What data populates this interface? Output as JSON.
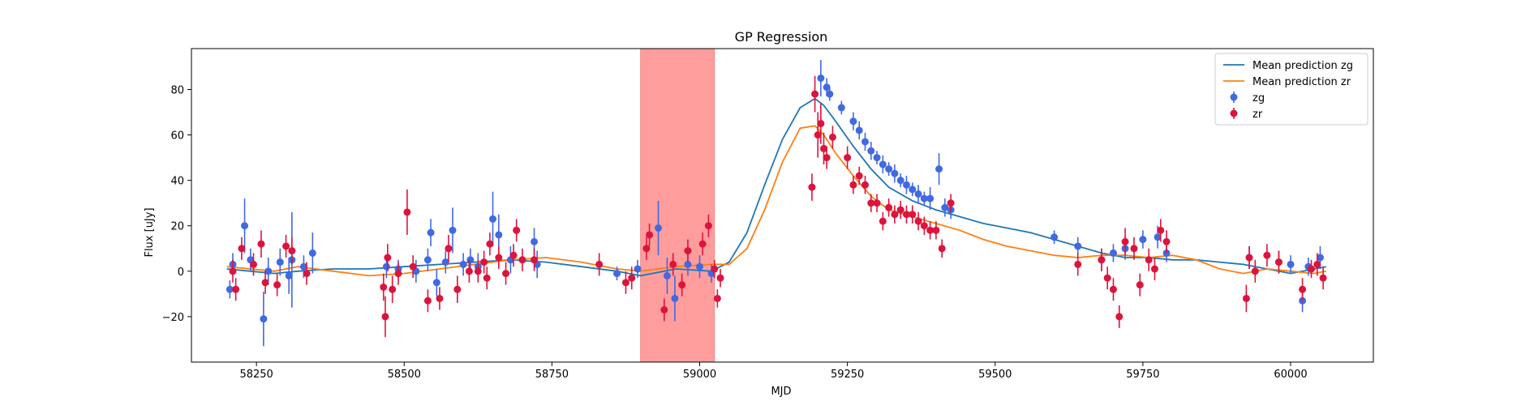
{
  "chart_data": {
    "type": "scatter",
    "title": "GP Regression",
    "xlabel": "MJD",
    "ylabel": "Flux [uJy]",
    "xlim": [
      58140,
      60140
    ],
    "ylim": [
      -40,
      98
    ],
    "xticks": [
      58250,
      58500,
      58750,
      59000,
      59250,
      59500,
      59750,
      60000
    ],
    "yticks": [
      -20,
      0,
      20,
      40,
      60,
      80
    ],
    "legend_position": "upper right",
    "shaded_region": {
      "x0": 58900,
      "x1": 59025,
      "color": "#ff9d9d"
    },
    "lines": [
      {
        "name": "Mean prediction zg",
        "color": "#1f77b4",
        "x": [
          58200,
          58240,
          58280,
          58320,
          58380,
          58440,
          58500,
          58560,
          58620,
          58680,
          58740,
          58800,
          58860,
          58900,
          58960,
          59020,
          59050,
          59080,
          59110,
          59140,
          59170,
          59195,
          59210,
          59230,
          59260,
          59290,
          59320,
          59360,
          59400,
          59440,
          59480,
          59520,
          59560,
          59600,
          59640,
          59680,
          59720,
          59760,
          59800,
          59840,
          59880,
          59920,
          59960,
          60000,
          60040,
          60060
        ],
        "y": [
          1,
          0,
          -1,
          0,
          1,
          1,
          2,
          3,
          4,
          5,
          4,
          2,
          0,
          -2,
          1,
          0,
          4,
          17,
          38,
          58,
          72,
          76,
          73,
          66,
          55,
          45,
          37,
          31,
          27,
          24,
          21,
          19,
          17,
          14,
          11,
          8,
          6,
          6,
          5,
          5,
          4,
          3,
          1,
          -1,
          1,
          2
        ]
      },
      {
        "name": "Mean prediction zr",
        "color": "#ff7f0e",
        "x": [
          58200,
          58240,
          58280,
          58320,
          58380,
          58440,
          58500,
          58560,
          58620,
          58680,
          58740,
          58800,
          58860,
          58900,
          58960,
          59020,
          59050,
          59080,
          59110,
          59140,
          59170,
          59195,
          59210,
          59230,
          59260,
          59290,
          59320,
          59360,
          59400,
          59440,
          59480,
          59520,
          59560,
          59600,
          59640,
          59680,
          59720,
          59760,
          59800,
          59840,
          59880,
          59920,
          59960,
          60000,
          60040,
          60060
        ],
        "y": [
          2,
          1,
          0,
          2,
          0,
          -2,
          -1,
          1,
          3,
          5,
          6,
          4,
          1,
          0,
          2,
          3,
          3,
          10,
          27,
          48,
          63,
          64,
          60,
          52,
          42,
          33,
          27,
          24,
          21,
          18,
          14,
          11,
          9,
          7,
          6,
          7,
          7,
          6,
          7,
          5,
          1,
          -1,
          1,
          0,
          -1,
          0
        ]
      }
    ],
    "series": [
      {
        "name": "zg",
        "color": "#4169e1",
        "points": [
          [
            58205,
            -8,
            4
          ],
          [
            58210,
            3,
            5
          ],
          [
            58230,
            20,
            12
          ],
          [
            58240,
            5,
            5
          ],
          [
            58262,
            -21,
            12
          ],
          [
            58270,
            0,
            6
          ],
          [
            58290,
            4,
            6
          ],
          [
            58305,
            -2,
            8
          ],
          [
            58310,
            5,
            21
          ],
          [
            58330,
            2,
            5
          ],
          [
            58345,
            8,
            9
          ],
          [
            58470,
            2,
            5
          ],
          [
            58490,
            1,
            4
          ],
          [
            58520,
            0,
            5
          ],
          [
            58540,
            5,
            5
          ],
          [
            58545,
            17,
            6
          ],
          [
            58555,
            -5,
            6
          ],
          [
            58570,
            4,
            5
          ],
          [
            58582,
            18,
            10
          ],
          [
            58600,
            3,
            5
          ],
          [
            58612,
            5,
            5
          ],
          [
            58625,
            2,
            6
          ],
          [
            58650,
            23,
            12
          ],
          [
            58660,
            16,
            9
          ],
          [
            58680,
            5,
            6
          ],
          [
            58720,
            13,
            6
          ],
          [
            58725,
            3,
            6
          ],
          [
            58860,
            -1,
            3
          ],
          [
            58895,
            1,
            4
          ],
          [
            58930,
            19,
            12
          ],
          [
            58945,
            -2,
            8
          ],
          [
            58958,
            -12,
            10
          ],
          [
            58980,
            3,
            5
          ],
          [
            59000,
            2,
            5
          ],
          [
            59020,
            -1,
            4
          ],
          [
            59205,
            85,
            8
          ],
          [
            59215,
            81,
            4
          ],
          [
            59220,
            78,
            3
          ],
          [
            59240,
            72,
            3
          ],
          [
            59260,
            66,
            4
          ],
          [
            59270,
            62,
            4
          ],
          [
            59280,
            57,
            4
          ],
          [
            59290,
            53,
            4
          ],
          [
            59300,
            50,
            3
          ],
          [
            59310,
            47,
            4
          ],
          [
            59320,
            45,
            3
          ],
          [
            59330,
            43,
            4
          ],
          [
            59340,
            40,
            3
          ],
          [
            59350,
            38,
            4
          ],
          [
            59360,
            36,
            3
          ],
          [
            59370,
            34,
            4
          ],
          [
            59380,
            32,
            3
          ],
          [
            59390,
            32,
            5
          ],
          [
            59405,
            45,
            7
          ],
          [
            59415,
            28,
            4
          ],
          [
            59425,
            27,
            4
          ],
          [
            59600,
            15,
            3
          ],
          [
            59640,
            11,
            4
          ],
          [
            59680,
            5,
            5
          ],
          [
            59700,
            8,
            4
          ],
          [
            59720,
            10,
            5
          ],
          [
            59750,
            14,
            4
          ],
          [
            59775,
            15,
            5
          ],
          [
            59790,
            8,
            4
          ],
          [
            59930,
            6,
            5
          ],
          [
            59980,
            4,
            5
          ],
          [
            60000,
            3,
            4
          ],
          [
            60020,
            -13,
            5
          ],
          [
            60030,
            2,
            4
          ],
          [
            60050,
            6,
            5
          ]
        ]
      },
      {
        "name": "zr",
        "color": "#dc143c",
        "points": [
          [
            58210,
            0,
            5
          ],
          [
            58215,
            -8,
            5
          ],
          [
            58225,
            10,
            5
          ],
          [
            58245,
            3,
            5
          ],
          [
            58258,
            12,
            6
          ],
          [
            58265,
            -5,
            5
          ],
          [
            58285,
            -6,
            5
          ],
          [
            58300,
            11,
            5
          ],
          [
            58310,
            9,
            6
          ],
          [
            58335,
            -1,
            5
          ],
          [
            58465,
            -7,
            6
          ],
          [
            58468,
            -20,
            9
          ],
          [
            58472,
            6,
            6
          ],
          [
            58480,
            -8,
            6
          ],
          [
            58490,
            -1,
            5
          ],
          [
            58505,
            26,
            10
          ],
          [
            58515,
            2,
            5
          ],
          [
            58540,
            -13,
            5
          ],
          [
            58560,
            -12,
            5
          ],
          [
            58575,
            10,
            6
          ],
          [
            58590,
            -8,
            6
          ],
          [
            58610,
            0,
            5
          ],
          [
            58625,
            0,
            5
          ],
          [
            58635,
            4,
            5
          ],
          [
            58640,
            -3,
            5
          ],
          [
            58645,
            12,
            5
          ],
          [
            58660,
            6,
            5
          ],
          [
            58672,
            -1,
            5
          ],
          [
            58685,
            7,
            5
          ],
          [
            58690,
            18,
            5
          ],
          [
            58700,
            5,
            5
          ],
          [
            58720,
            5,
            5
          ],
          [
            58830,
            3,
            5
          ],
          [
            58875,
            -5,
            5
          ],
          [
            58885,
            -3,
            5
          ],
          [
            58910,
            10,
            5
          ],
          [
            58915,
            16,
            5
          ],
          [
            58940,
            -17,
            5
          ],
          [
            58955,
            3,
            5
          ],
          [
            58970,
            -6,
            5
          ],
          [
            58980,
            9,
            5
          ],
          [
            59005,
            12,
            5
          ],
          [
            59015,
            20,
            5
          ],
          [
            59025,
            1,
            4
          ],
          [
            59035,
            -3,
            4
          ],
          [
            59030,
            -12,
            4
          ],
          [
            59190,
            37,
            6
          ],
          [
            59195,
            78,
            8
          ],
          [
            59200,
            60,
            10
          ],
          [
            59205,
            65,
            9
          ],
          [
            59210,
            54,
            7
          ],
          [
            59215,
            50,
            5
          ],
          [
            59225,
            59,
            5
          ],
          [
            59250,
            50,
            5
          ],
          [
            59260,
            38,
            4
          ],
          [
            59270,
            42,
            4
          ],
          [
            59280,
            38,
            4
          ],
          [
            59290,
            30,
            4
          ],
          [
            59300,
            30,
            4
          ],
          [
            59310,
            22,
            4
          ],
          [
            59320,
            28,
            4
          ],
          [
            59330,
            25,
            4
          ],
          [
            59340,
            27,
            4
          ],
          [
            59350,
            25,
            4
          ],
          [
            59360,
            25,
            4
          ],
          [
            59370,
            22,
            4
          ],
          [
            59380,
            20,
            4
          ],
          [
            59390,
            18,
            4
          ],
          [
            59400,
            18,
            4
          ],
          [
            59410,
            10,
            4
          ],
          [
            59425,
            30,
            4
          ],
          [
            59640,
            3,
            5
          ],
          [
            59680,
            5,
            5
          ],
          [
            59690,
            -3,
            5
          ],
          [
            59700,
            -8,
            5
          ],
          [
            59710,
            -20,
            5
          ],
          [
            59720,
            13,
            6
          ],
          [
            59735,
            10,
            5
          ],
          [
            59745,
            -6,
            5
          ],
          [
            59760,
            5,
            5
          ],
          [
            59770,
            1,
            5
          ],
          [
            59780,
            18,
            5
          ],
          [
            59790,
            13,
            5
          ],
          [
            59925,
            -12,
            6
          ],
          [
            59930,
            6,
            5
          ],
          [
            59940,
            0,
            5
          ],
          [
            59960,
            7,
            5
          ],
          [
            59980,
            4,
            5
          ],
          [
            60020,
            -8,
            5
          ],
          [
            60035,
            1,
            4
          ],
          [
            60045,
            3,
            5
          ],
          [
            60055,
            -3,
            5
          ]
        ]
      }
    ]
  }
}
